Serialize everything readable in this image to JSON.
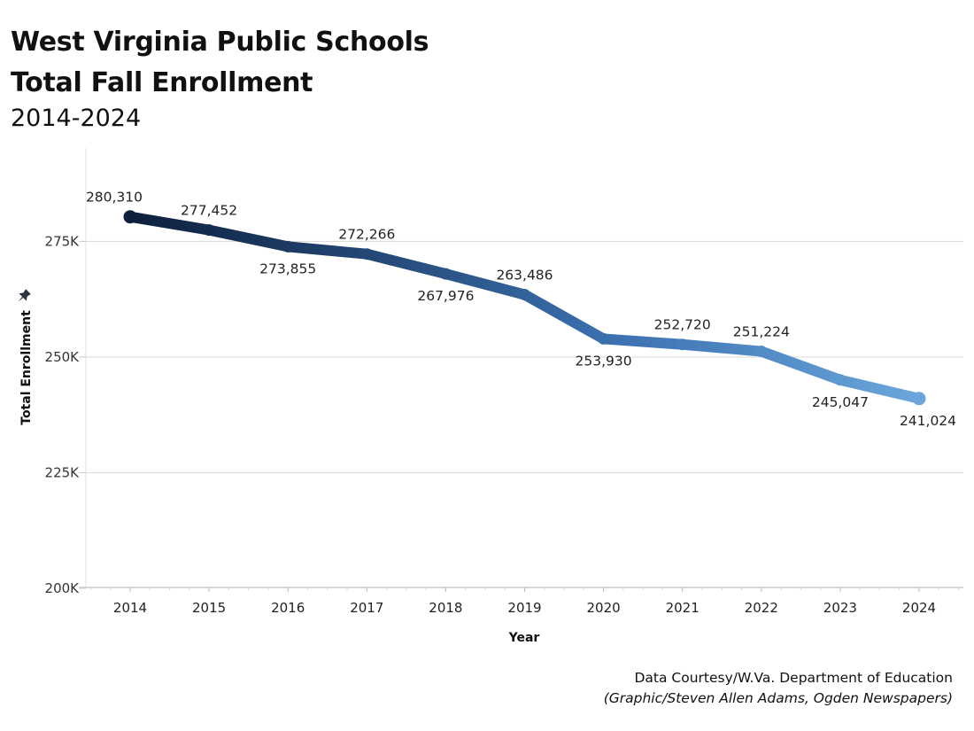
{
  "header": {
    "title_line1": "West Virginia Public Schools",
    "title_line2": "Total Fall Enrollment",
    "subtitle": "2014-2024"
  },
  "credits": {
    "line1": "Data Courtesy/W.Va. Department of Education",
    "line2": "(Graphic/Steven Allen Adams, Ogden Newspapers)"
  },
  "icons": {
    "ylabel_pin": "pin-icon"
  },
  "colors": {
    "line_start": "#0d1f3c",
    "line_mid": "#3a6fae",
    "line_end": "#6aa6dc",
    "grid": "#dddddd",
    "axis": "#cccccc"
  },
  "chart_data": {
    "type": "line",
    "title": "West Virginia Public Schools Total Fall Enrollment",
    "subtitle": "2014-2024",
    "xlabel": "Year",
    "ylabel": "Total Enrollment",
    "x": [
      2014,
      2015,
      2016,
      2017,
      2018,
      2019,
      2020,
      2021,
      2022,
      2023,
      2024
    ],
    "series": [
      {
        "name": "Total Enrollment",
        "values": [
          280310,
          277452,
          273855,
          272266,
          267976,
          263486,
          253930,
          252720,
          251224,
          245047,
          241024
        ],
        "labels": [
          "280,310",
          "277,452",
          "273,855",
          "272,266",
          "267,976",
          "263,486",
          "253,930",
          "252,720",
          "251,224",
          "245,047",
          "241,024"
        ],
        "label_positions": [
          "above",
          "above",
          "below",
          "above",
          "below",
          "above",
          "below",
          "above",
          "above",
          "below",
          "below"
        ]
      }
    ],
    "y_ticks": [
      200000,
      225000,
      250000,
      275000
    ],
    "y_tick_labels": [
      "200K",
      "225K",
      "250K",
      "275K"
    ],
    "x_tick_labels": [
      "2014",
      "2015",
      "2016",
      "2017",
      "2018",
      "2019",
      "2020",
      "2021",
      "2022",
      "2023",
      "2024"
    ],
    "ylim": [
      200000,
      295000
    ],
    "xlim": [
      2013.45,
      2024.55
    ],
    "grid": "horizontal",
    "legend": "none"
  }
}
